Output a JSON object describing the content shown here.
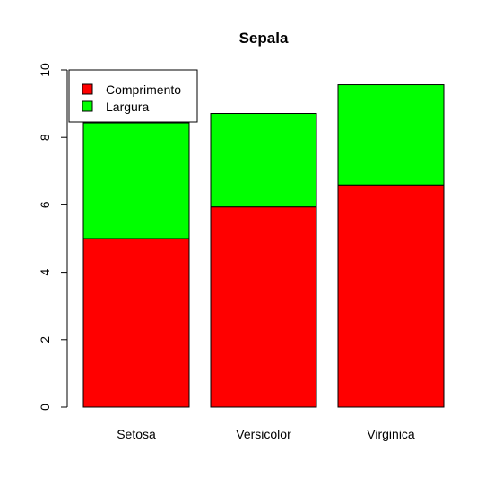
{
  "chart_data": {
    "type": "bar",
    "stacked": true,
    "title": "Sepala",
    "xlabel": "",
    "ylabel": "",
    "categories": [
      "Setosa",
      "Versicolor",
      "Virginica"
    ],
    "series": [
      {
        "name": "Comprimento",
        "color": "#ff0000",
        "values": [
          5.0,
          5.94,
          6.59
        ]
      },
      {
        "name": "Largura",
        "color": "#00ff00",
        "values": [
          3.43,
          2.77,
          2.97
        ]
      }
    ],
    "ylim": [
      0,
      10
    ],
    "yticks": [
      "0",
      "2",
      "4",
      "6",
      "8",
      "10"
    ],
    "grid": false,
    "legend_position": "top-left"
  }
}
